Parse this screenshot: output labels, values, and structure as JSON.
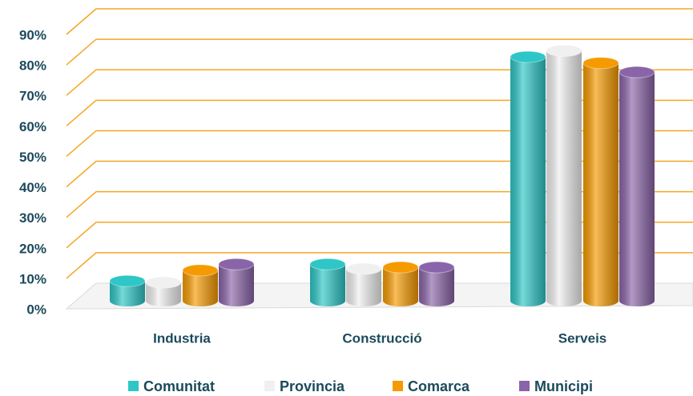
{
  "chart_data": {
    "type": "bar",
    "categories": [
      "Industria",
      "Construcció",
      "Serveis"
    ],
    "series": [
      {
        "name": "Comunitat",
        "color": "#2ec6c6",
        "values": [
          6.5,
          12,
          80
        ]
      },
      {
        "name": "Provincia",
        "color": "#f0f0f0",
        "values": [
          6,
          10.5,
          82
        ]
      },
      {
        "name": "Comarca",
        "color": "#f59a00",
        "values": [
          10,
          11,
          78
        ]
      },
      {
        "name": "Municipi",
        "color": "#8a64a8",
        "values": [
          12,
          11,
          75
        ]
      }
    ],
    "ylim": [
      0,
      90
    ],
    "yticks": [
      {
        "value": 0,
        "label": "0%"
      },
      {
        "value": 10,
        "label": "10%"
      },
      {
        "value": 20,
        "label": "20%"
      },
      {
        "value": 30,
        "label": "30%"
      },
      {
        "value": 40,
        "label": "40%"
      },
      {
        "value": 50,
        "label": "50%"
      },
      {
        "value": 60,
        "label": "60%"
      },
      {
        "value": 70,
        "label": "70%"
      },
      {
        "value": 80,
        "label": "80%"
      },
      {
        "value": 90,
        "label": "90%"
      }
    ],
    "grid": true,
    "grid_color": "#f5a623",
    "legend": "bottom"
  }
}
